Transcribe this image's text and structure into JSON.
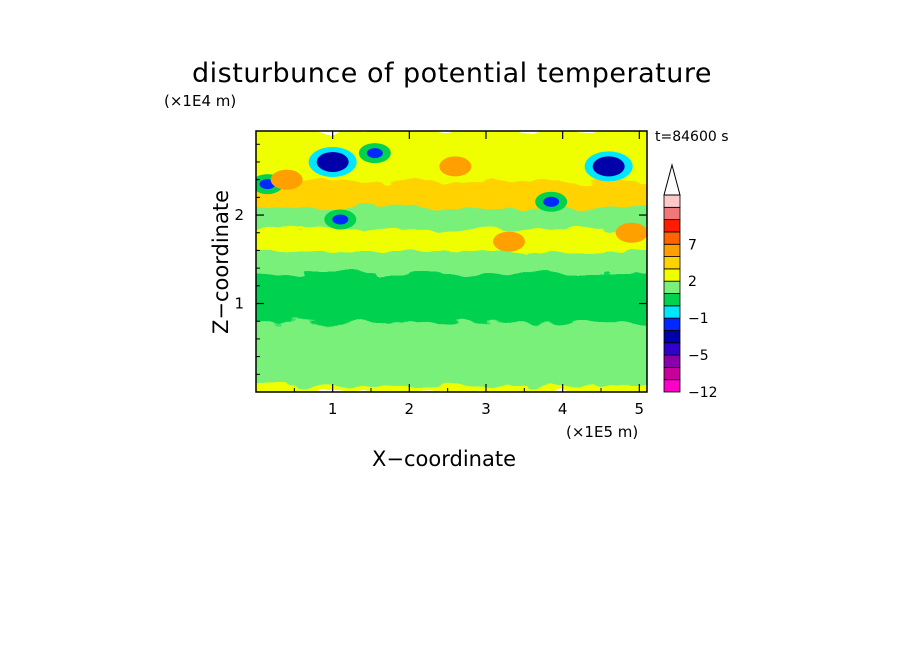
{
  "chart_data": {
    "type": "heatmap",
    "title": "disturbunce of potential temperature",
    "time_label": "t=84600 s",
    "xlabel": "X−coordinate",
    "ylabel": "Z−coordinate",
    "x_unit": "(×1E5 m)",
    "y_unit": "(×1E4 m)",
    "xlim": [
      0,
      5.1
    ],
    "ylim": [
      0,
      2.95
    ],
    "x_ticks": [
      "1",
      "2",
      "3",
      "4",
      "5"
    ],
    "x_tick_values": [
      1,
      2,
      3,
      4,
      5
    ],
    "y_ticks": [
      "1",
      "2"
    ],
    "y_tick_values": [
      1,
      2
    ],
    "colorbar": {
      "levels": [
        -12,
        -10,
        -8,
        -5,
        -4,
        -3,
        -1,
        0,
        1,
        2,
        3,
        5,
        7,
        9,
        11
      ],
      "tick_labels": [
        "7",
        "2",
        "−1",
        "−5",
        "−12"
      ],
      "tick_values": [
        7,
        2,
        -1,
        -5,
        -12
      ],
      "colors": [
        "#ff00c8",
        "#c8009b",
        "#8c00aa",
        "#3200c8",
        "#0000aa",
        "#0028ff",
        "#00e6ff",
        "#00d250",
        "#78f07a",
        "#f0ff00",
        "#ffd200",
        "#ffa000",
        "#ff6400",
        "#ff1e00",
        "#f07878",
        "#ffc8c8"
      ],
      "extend": "max"
    },
    "layers": [
      {
        "z_range": [
          0.0,
          0.08
        ],
        "value": 1
      },
      {
        "z_range": [
          0.08,
          0.6
        ],
        "value": 0.5
      },
      {
        "z_range": [
          0.6,
          0.8
        ],
        "value": 0.5
      },
      {
        "z_range": [
          0.8,
          1.0
        ],
        "value": -0.3
      },
      {
        "z_range": [
          1.0,
          1.35
        ],
        "value": -0.8
      },
      {
        "z_range": [
          1.35,
          1.6
        ],
        "value": 0.4
      },
      {
        "z_range": [
          1.6,
          1.85
        ],
        "value": 1.5
      },
      {
        "z_range": [
          1.85,
          2.1
        ],
        "value": 0.2
      },
      {
        "z_range": [
          2.1,
          2.4
        ],
        "value": 2
      },
      {
        "z_range": [
          2.4,
          2.7
        ],
        "value": 1
      },
      {
        "z_range": [
          2.7,
          2.95
        ],
        "value": 1.5
      }
    ],
    "features": [
      {
        "x": 1.0,
        "z": 2.6,
        "value": -5
      },
      {
        "x": 0.15,
        "z": 2.35,
        "value": -4
      },
      {
        "x": 4.6,
        "z": 2.55,
        "value": -5
      },
      {
        "x": 3.85,
        "z": 2.15,
        "value": -4
      },
      {
        "x": 1.1,
        "z": 1.95,
        "value": -4
      },
      {
        "x": 1.55,
        "z": 2.7,
        "value": -4
      },
      {
        "x": 2.6,
        "z": 2.55,
        "value": 3
      },
      {
        "x": 0.4,
        "z": 2.4,
        "value": 3
      },
      {
        "x": 3.3,
        "z": 1.7,
        "value": 3
      },
      {
        "x": 4.9,
        "z": 1.8,
        "value": 3
      }
    ]
  }
}
